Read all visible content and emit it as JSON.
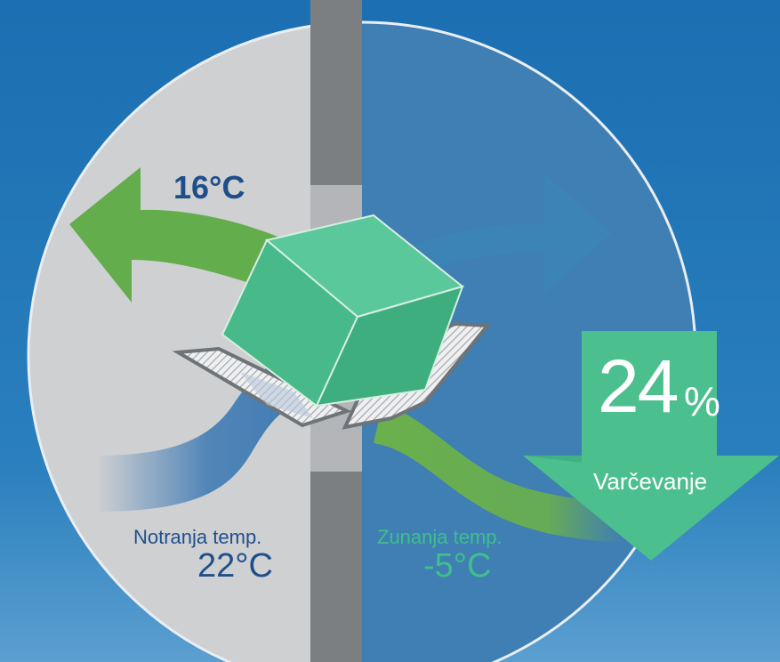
{
  "colors": {
    "background": "#1c70b3",
    "indoor_side": "#cfd0d2",
    "outdoor_side": "#3f7fb3",
    "wall": "#7b7f82",
    "heat_green": "#63ad4d",
    "cube_green": "#4cbf8e",
    "indoor_text": "#1f4f8a",
    "outdoor_text": "#3fbf8d",
    "savings_arrow": "#4cbf8e"
  },
  "icons": {
    "supply_arrow": "left-arrow-icon",
    "exhaust_arrow": "right-arrow-icon",
    "heat_exchanger": "cube-icon",
    "savings_arrow": "down-arrow-icon"
  },
  "diagram": {
    "supply_temperature": "16°C",
    "indoor": {
      "caption": "Notranja temp.",
      "value": "22°C"
    },
    "outdoor": {
      "caption": "Zunanja temp.",
      "value": "-5°C"
    },
    "savings": {
      "number": "24",
      "unit": "%",
      "label": "Varčevanje"
    }
  }
}
